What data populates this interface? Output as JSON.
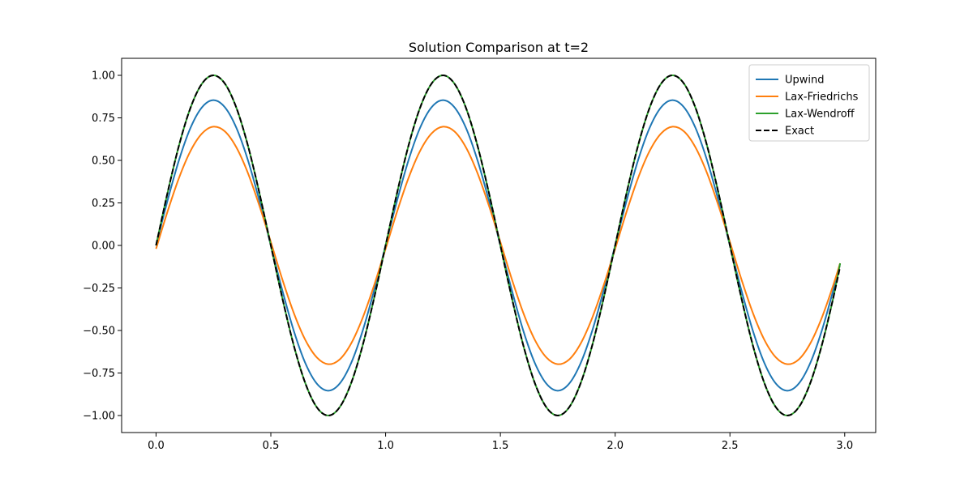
{
  "chart_data": {
    "type": "line",
    "title": "Solution Comparison at t=2",
    "xlabel": "",
    "ylabel": "",
    "xlim": [
      -0.15,
      3.135
    ],
    "ylim": [
      -1.1,
      1.1
    ],
    "x_ticks": [
      0.0,
      0.5,
      1.0,
      1.5,
      2.0,
      2.5,
      3.0
    ],
    "x_tick_labels": [
      "0.0",
      "0.5",
      "1.0",
      "1.5",
      "2.0",
      "2.5",
      "3.0"
    ],
    "y_ticks": [
      -1.0,
      -0.75,
      -0.5,
      -0.25,
      0.0,
      0.25,
      0.5,
      0.75,
      1.0
    ],
    "y_tick_labels": [
      "−1.00",
      "−0.75",
      "−0.50",
      "−0.25",
      "0.00",
      "0.25",
      "0.50",
      "0.75",
      "1.00"
    ],
    "grid": false,
    "legend_position": "top-right",
    "x": [
      0.0,
      0.05,
      0.1,
      0.15,
      0.2,
      0.25,
      0.3,
      0.35,
      0.4,
      0.45,
      0.5,
      0.55,
      0.6,
      0.65,
      0.7,
      0.75,
      0.8,
      0.85,
      0.9,
      0.95,
      1.0,
      1.05,
      1.1,
      1.15,
      1.2,
      1.25,
      1.3,
      1.35,
      1.4,
      1.45,
      1.5,
      1.55,
      1.6,
      1.65,
      1.7,
      1.75,
      1.8,
      1.85,
      1.9,
      1.95,
      2.0,
      2.05,
      2.1,
      2.15,
      2.2,
      2.25,
      2.3,
      2.35,
      2.4,
      2.45,
      2.5,
      2.55,
      2.6,
      2.65,
      2.7,
      2.75,
      2.8,
      2.85,
      2.9,
      2.95,
      2.98
    ],
    "series": [
      {
        "name": "Upwind",
        "color": "#1f77b4",
        "dash": "solid",
        "values": [
          0.0,
          0.264,
          0.502,
          0.691,
          0.812,
          0.854,
          0.812,
          0.691,
          0.502,
          0.264,
          0.0,
          -0.264,
          -0.502,
          -0.691,
          -0.812,
          -0.854,
          -0.812,
          -0.691,
          -0.502,
          -0.264,
          0.0,
          0.264,
          0.502,
          0.691,
          0.812,
          0.854,
          0.812,
          0.691,
          0.502,
          0.264,
          0.0,
          -0.264,
          -0.502,
          -0.691,
          -0.812,
          -0.854,
          -0.812,
          -0.691,
          -0.502,
          -0.264,
          0.0,
          0.264,
          0.502,
          0.691,
          0.812,
          0.854,
          0.812,
          0.691,
          0.502,
          0.264,
          0.0,
          -0.264,
          -0.502,
          -0.691,
          -0.812,
          -0.854,
          -0.812,
          -0.691,
          -0.502,
          -0.264,
          -0.107
        ]
      },
      {
        "name": "Lax-Friedrichs",
        "color": "#ff7f0e",
        "dash": "solid",
        "values": [
          -0.02,
          0.199,
          0.397,
          0.555,
          0.658,
          0.698,
          0.67,
          0.576,
          0.426,
          0.234,
          0.02,
          -0.199,
          -0.397,
          -0.555,
          -0.658,
          -0.698,
          -0.67,
          -0.576,
          -0.426,
          -0.234,
          -0.02,
          0.199,
          0.397,
          0.555,
          0.658,
          0.698,
          0.67,
          0.576,
          0.426,
          0.234,
          0.02,
          -0.199,
          -0.397,
          -0.555,
          -0.658,
          -0.698,
          -0.67,
          -0.576,
          -0.426,
          -0.234,
          -0.02,
          0.199,
          0.397,
          0.555,
          0.658,
          0.698,
          0.67,
          0.576,
          0.426,
          0.234,
          0.02,
          -0.199,
          -0.397,
          -0.555,
          -0.658,
          -0.698,
          -0.67,
          -0.576,
          -0.426,
          -0.234,
          -0.105
        ]
      },
      {
        "name": "Lax-Wendroff",
        "color": "#2ca02c",
        "dash": "solid",
        "values": [
          0.0,
          0.309,
          0.588,
          0.809,
          0.951,
          1.0,
          0.951,
          0.809,
          0.588,
          0.309,
          0.0,
          -0.309,
          -0.588,
          -0.809,
          -0.951,
          -1.0,
          -0.951,
          -0.809,
          -0.588,
          -0.309,
          0.0,
          0.309,
          0.588,
          0.809,
          0.951,
          1.0,
          0.951,
          0.809,
          0.588,
          0.309,
          0.0,
          -0.309,
          -0.588,
          -0.809,
          -0.951,
          -1.0,
          -0.951,
          -0.809,
          -0.588,
          -0.309,
          0.0,
          0.309,
          0.588,
          0.809,
          0.951,
          1.0,
          0.951,
          0.809,
          0.588,
          0.309,
          0.0,
          -0.309,
          -0.588,
          -0.809,
          -0.951,
          -1.0,
          -0.951,
          -0.809,
          -0.588,
          -0.309,
          -0.105
        ]
      },
      {
        "name": "Exact",
        "color": "#000000",
        "dash": "dashed",
        "values": [
          0.0,
          0.309,
          0.588,
          0.809,
          0.951,
          1.0,
          0.951,
          0.809,
          0.588,
          0.309,
          0.0,
          -0.309,
          -0.588,
          -0.809,
          -0.951,
          -1.0,
          -0.951,
          -0.809,
          -0.588,
          -0.309,
          0.0,
          0.309,
          0.588,
          0.809,
          0.951,
          1.0,
          0.951,
          0.809,
          0.588,
          0.309,
          0.0,
          -0.309,
          -0.588,
          -0.809,
          -0.951,
          -1.0,
          -0.951,
          -0.809,
          -0.588,
          -0.309,
          0.0,
          0.309,
          0.588,
          0.809,
          0.951,
          1.0,
          0.951,
          0.809,
          0.588,
          0.309,
          0.0,
          -0.309,
          -0.588,
          -0.809,
          -0.951,
          -1.0,
          -0.951,
          -0.809,
          -0.588,
          -0.309,
          -0.125
        ]
      }
    ]
  }
}
